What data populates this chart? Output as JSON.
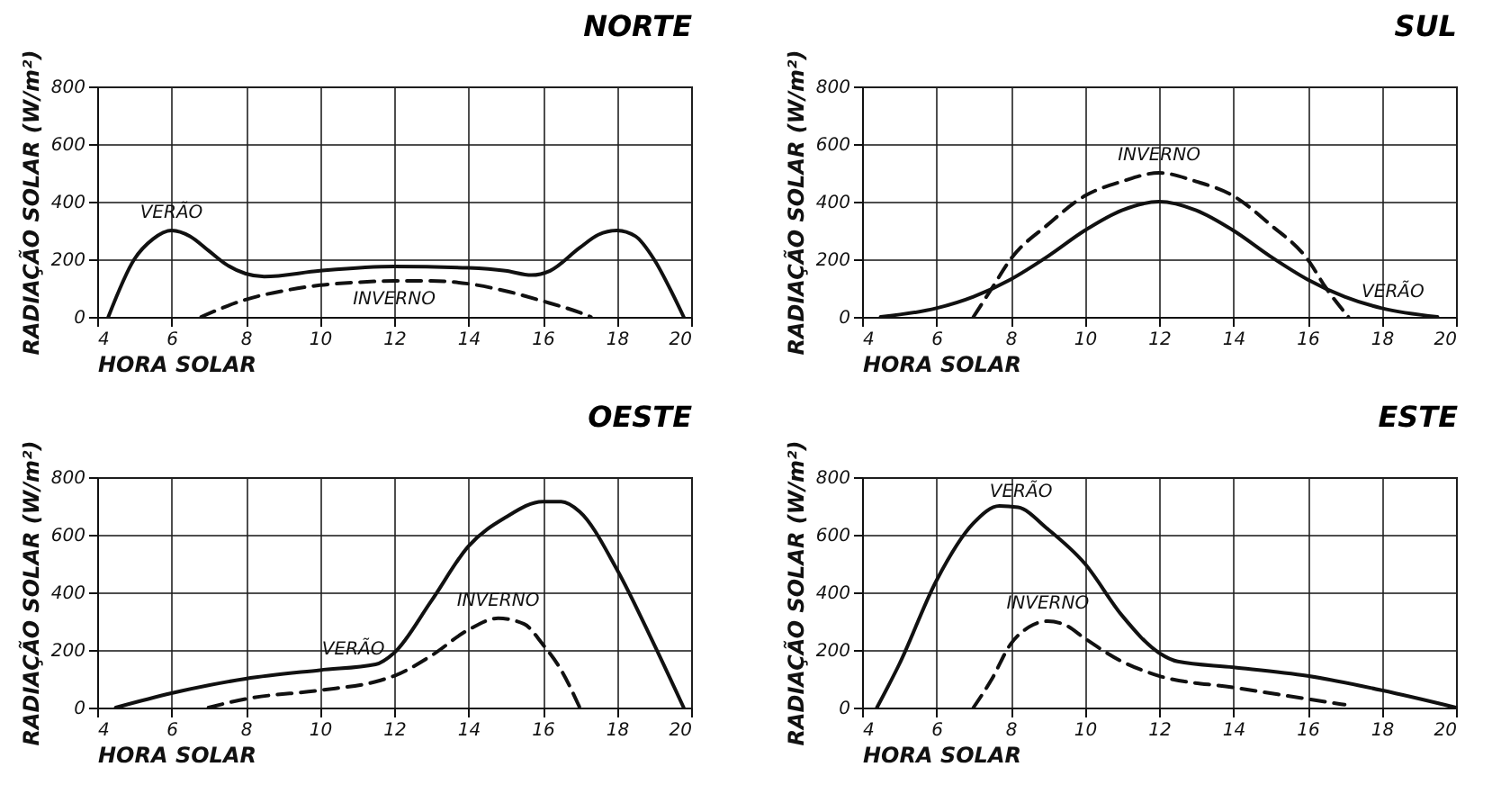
{
  "chart_data": [
    {
      "type": "line",
      "title": "NORTE",
      "xlabel": "HORA SOLAR",
      "ylabel": "RADIAÇÃO SOLAR (W/m²)",
      "xlim": [
        4,
        20
      ],
      "xticks": [
        4,
        6,
        8,
        10,
        12,
        14,
        16,
        18,
        20
      ],
      "ylim": [
        0,
        800
      ],
      "yticks": [
        0,
        200,
        400,
        600,
        800
      ],
      "grid": true,
      "legend": false,
      "series": [
        {
          "name": "VERÃO",
          "color": "#111111",
          "line_style": "solid",
          "x": [
            4.3,
            5,
            5.5,
            6,
            6.5,
            7,
            7.5,
            8,
            8.5,
            10,
            12,
            14,
            15,
            15.7,
            16.2,
            17,
            17.5,
            18,
            18.5,
            19,
            19.5,
            19.8
          ],
          "values": [
            0,
            200,
            270,
            300,
            280,
            230,
            180,
            150,
            140,
            160,
            175,
            170,
            160,
            145,
            160,
            240,
            285,
            300,
            280,
            200,
            80,
            0
          ]
        },
        {
          "name": "INVERNO",
          "color": "#111111",
          "line_style": "dashed",
          "x": [
            6.8,
            8,
            9,
            10,
            11,
            12,
            13,
            14,
            15,
            16,
            17,
            17.3
          ],
          "values": [
            0,
            60,
            90,
            110,
            120,
            125,
            125,
            115,
            90,
            55,
            15,
            0
          ]
        }
      ]
    },
    {
      "type": "line",
      "title": "SUL",
      "xlabel": "HORA SOLAR",
      "ylabel": "RADIAÇÃO SOLAR (W/m²)",
      "xlim": [
        4,
        20
      ],
      "xticks": [
        4,
        6,
        8,
        10,
        12,
        14,
        16,
        18,
        20
      ],
      "ylim": [
        0,
        800
      ],
      "yticks": [
        0,
        200,
        400,
        600,
        800
      ],
      "grid": true,
      "legend": false,
      "series": [
        {
          "name": "VERÃO",
          "color": "#111111",
          "line_style": "solid",
          "x": [
            4.5,
            6,
            7,
            8,
            9,
            10,
            11,
            12,
            13,
            14,
            15,
            16,
            17,
            18,
            19.5
          ],
          "values": [
            0,
            30,
            70,
            130,
            210,
            300,
            370,
            400,
            370,
            300,
            210,
            130,
            70,
            30,
            0
          ]
        },
        {
          "name": "INVERNO",
          "color": "#111111",
          "line_style": "dashed",
          "x": [
            7,
            7.5,
            8,
            9,
            10,
            11,
            12,
            13,
            14,
            15,
            16,
            16.5,
            17.1
          ],
          "values": [
            0,
            100,
            200,
            320,
            420,
            470,
            500,
            470,
            420,
            320,
            200,
            100,
            0
          ]
        }
      ]
    },
    {
      "type": "line",
      "title": "OESTE",
      "xlabel": "HORA SOLAR",
      "ylabel": "RADIAÇÃO SOLAR (W/m²)",
      "xlim": [
        4,
        20
      ],
      "xticks": [
        4,
        6,
        8,
        10,
        12,
        14,
        16,
        18,
        20
      ],
      "ylim": [
        0,
        800
      ],
      "yticks": [
        0,
        200,
        400,
        600,
        800
      ],
      "grid": true,
      "legend": false,
      "series": [
        {
          "name": "VERÃO",
          "color": "#111111",
          "line_style": "solid",
          "x": [
            4.5,
            6,
            8,
            10,
            11.5,
            12,
            13,
            14,
            15,
            16,
            16.5,
            17,
            18,
            19,
            19.8
          ],
          "values": [
            0,
            50,
            100,
            130,
            150,
            190,
            370,
            560,
            660,
            715,
            715,
            680,
            480,
            220,
            0
          ]
        },
        {
          "name": "INVERNO",
          "color": "#111111",
          "line_style": "dashed",
          "x": [
            7,
            8,
            10,
            11.5,
            12,
            13,
            14,
            14.8,
            15.5,
            16,
            16.5,
            17
          ],
          "values": [
            0,
            30,
            60,
            90,
            110,
            180,
            270,
            310,
            290,
            220,
            130,
            0
          ]
        }
      ]
    },
    {
      "type": "line",
      "title": "ESTE",
      "xlabel": "HORA SOLAR",
      "ylabel": "RADIAÇÃO SOLAR (W/m²)",
      "xlim": [
        4,
        20
      ],
      "xticks": [
        4,
        6,
        8,
        10,
        12,
        14,
        16,
        18,
        20
      ],
      "ylim": [
        0,
        800
      ],
      "yticks": [
        0,
        200,
        400,
        600,
        800
      ],
      "grid": true,
      "legend": false,
      "series": [
        {
          "name": "VERÃO",
          "color": "#111111",
          "line_style": "solid",
          "x": [
            4.4,
            5,
            6,
            7,
            7.7,
            8.2,
            9,
            10,
            11,
            12,
            12.5,
            14,
            16,
            18,
            20
          ],
          "values": [
            0,
            150,
            440,
            640,
            700,
            695,
            620,
            500,
            320,
            190,
            160,
            140,
            110,
            60,
            0
          ]
        },
        {
          "name": "INVERNO",
          "color": "#111111",
          "line_style": "dashed",
          "x": [
            7,
            7.5,
            8,
            8.5,
            9,
            9.5,
            10,
            11,
            12,
            14,
            16,
            17
          ],
          "values": [
            0,
            100,
            220,
            280,
            300,
            285,
            240,
            160,
            110,
            70,
            30,
            10
          ]
        }
      ]
    }
  ]
}
